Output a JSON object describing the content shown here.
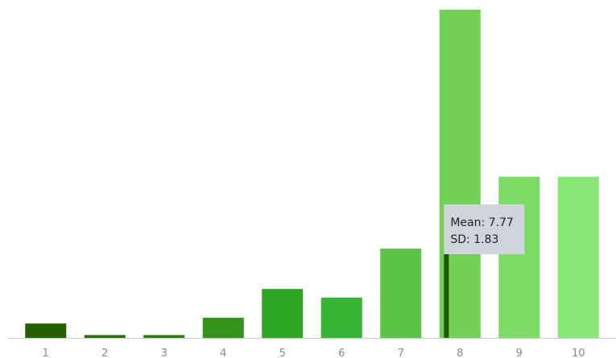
{
  "chart_data": {
    "type": "bar",
    "title": "",
    "xlabel": "",
    "ylabel": "",
    "categories": [
      "1",
      "2",
      "3",
      "4",
      "5",
      "6",
      "7",
      "8",
      "9",
      "10"
    ],
    "values": [
      5,
      1,
      1,
      7,
      17,
      14,
      31,
      114,
      56,
      56
    ],
    "colors": [
      "#236100",
      "#2a7009",
      "#2e7f11",
      "#33931a",
      "#2da624",
      "#39b536",
      "#5ac447",
      "#72d156",
      "#7ddc66",
      "#87e876"
    ],
    "ylim": [
      0,
      114
    ],
    "grid": false,
    "axis_color": "#cccccc",
    "mean_marker": {
      "value": 7.77,
      "color": "#1f5a00"
    },
    "tooltip": {
      "mean_text": "Mean: 7.77",
      "sd_text": "SD: 1.83",
      "background": "#d2d4dd"
    }
  }
}
